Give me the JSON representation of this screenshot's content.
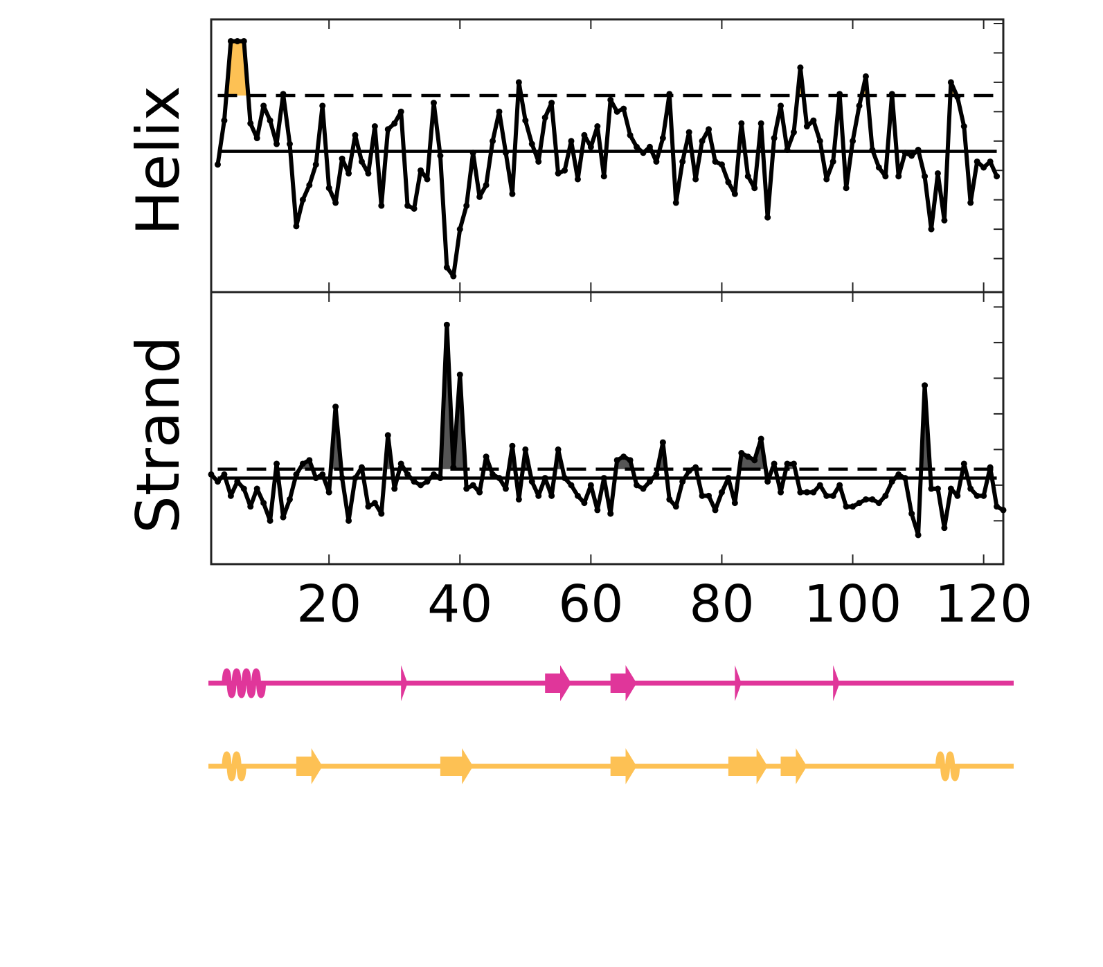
{
  "chart_data": {
    "type": "line",
    "x_ticks": [
      20,
      40,
      60,
      80,
      100,
      120
    ],
    "xlim": [
      2,
      123
    ],
    "colors": {
      "helix_fill": "#fdc154",
      "strand_fill": "#555555",
      "line": "#000000",
      "track_magenta": "#e0369a",
      "track_orange": "#fdc154"
    },
    "panels": [
      {
        "name": "Helix",
        "ylabel": "Helix",
        "ylim": [
          0,
          9
        ],
        "y_ticks": [
          1,
          2,
          3,
          4,
          5,
          6,
          7,
          8,
          9
        ],
        "mean": 4.65,
        "threshold": 6.55,
        "fill_color": "#fdc154",
        "x": [
          3,
          4,
          5,
          6,
          7,
          8,
          9,
          10,
          11,
          12,
          13,
          14,
          15,
          16,
          17,
          18,
          19,
          20,
          21,
          22,
          23,
          24,
          25,
          26,
          27,
          28,
          29,
          30,
          31,
          32,
          33,
          34,
          35,
          36,
          37,
          38,
          39,
          40,
          41,
          42,
          43,
          44,
          45,
          46,
          47,
          48,
          49,
          50,
          51,
          52,
          53,
          54,
          55,
          56,
          57,
          58,
          59,
          60,
          61,
          62,
          63,
          64,
          65,
          66,
          67,
          68,
          69,
          70,
          71,
          72,
          73,
          74,
          75,
          76,
          77,
          78,
          79,
          80,
          81,
          82,
          83,
          84,
          85,
          86,
          87,
          88,
          89,
          90,
          91,
          92,
          93,
          94,
          95,
          96,
          97,
          98,
          99,
          100,
          101,
          102,
          103,
          104,
          105,
          106,
          107,
          108,
          109,
          110,
          111,
          112,
          113,
          114,
          115,
          116,
          117,
          118,
          119,
          120,
          121,
          122
        ],
        "values": [
          4.2,
          5.7,
          8.4,
          8.4,
          8.4,
          5.6,
          5.1,
          6.2,
          5.7,
          4.9,
          6.6,
          4.9,
          2.1,
          3.0,
          3.5,
          4.2,
          6.2,
          3.4,
          2.9,
          4.4,
          3.9,
          5.2,
          4.3,
          3.9,
          5.5,
          2.8,
          5.4,
          5.6,
          6.0,
          2.8,
          2.7,
          4.0,
          3.7,
          6.3,
          4.5,
          0.7,
          0.4,
          2.0,
          2.8,
          4.6,
          3.1,
          3.5,
          5.0,
          6.0,
          4.6,
          3.2,
          7.0,
          5.7,
          4.9,
          4.3,
          5.8,
          6.3,
          3.9,
          4.0,
          5.0,
          3.7,
          5.2,
          4.8,
          5.5,
          3.8,
          6.4,
          6.0,
          6.1,
          5.2,
          4.8,
          4.6,
          4.8,
          4.3,
          5.1,
          6.6,
          2.9,
          4.3,
          5.3,
          3.7,
          5.0,
          5.4,
          4.3,
          4.2,
          3.6,
          3.2,
          5.6,
          3.8,
          3.4,
          5.6,
          2.4,
          5.1,
          6.2,
          4.7,
          5.3,
          7.5,
          5.5,
          5.7,
          5.0,
          3.7,
          4.3,
          6.6,
          3.4,
          5.0,
          6.2,
          7.2,
          4.7,
          4.1,
          3.8,
          6.6,
          3.8,
          4.6,
          4.5,
          4.7,
          3.8,
          2.0,
          3.9,
          2.3,
          7.0,
          6.5,
          5.5,
          2.9,
          4.3,
          4.1,
          4.3,
          3.8
        ]
      },
      {
        "name": "Strand",
        "ylabel": "Strand",
        "ylim": [
          -2.1,
          5.3
        ],
        "y_ticks": [
          -1,
          0,
          1,
          2,
          3,
          4,
          5
        ],
        "mean": 0.2,
        "threshold": 0.45,
        "fill_color": "#555555",
        "x": [
          2,
          3,
          4,
          5,
          6,
          7,
          8,
          9,
          10,
          11,
          12,
          13,
          14,
          15,
          16,
          17,
          18,
          19,
          20,
          21,
          22,
          23,
          24,
          25,
          26,
          27,
          28,
          29,
          30,
          31,
          32,
          33,
          34,
          35,
          36,
          37,
          38,
          39,
          40,
          41,
          42,
          43,
          44,
          45,
          46,
          47,
          48,
          49,
          50,
          51,
          52,
          53,
          54,
          55,
          56,
          57,
          58,
          59,
          60,
          61,
          62,
          63,
          64,
          65,
          66,
          67,
          68,
          69,
          70,
          71,
          72,
          73,
          74,
          75,
          76,
          77,
          78,
          79,
          80,
          81,
          82,
          83,
          84,
          85,
          86,
          87,
          88,
          89,
          90,
          91,
          92,
          93,
          94,
          95,
          96,
          97,
          98,
          99,
          100,
          101,
          102,
          103,
          104,
          105,
          106,
          107,
          108,
          109,
          110,
          111,
          112,
          113,
          114,
          115,
          116,
          117,
          118,
          119,
          120,
          121,
          122,
          123
        ],
        "values": [
          0.3,
          0.1,
          0.3,
          -0.3,
          0.1,
          -0.1,
          -0.6,
          -0.1,
          -0.5,
          -1.0,
          0.6,
          -0.9,
          -0.4,
          0.3,
          0.6,
          0.7,
          0.2,
          0.3,
          -0.2,
          2.2,
          0.2,
          -1.0,
          0.2,
          0.5,
          -0.6,
          -0.5,
          -0.8,
          1.4,
          -0.1,
          0.6,
          0.3,
          0.1,
          0.0,
          0.1,
          0.3,
          0.2,
          4.5,
          0.5,
          3.1,
          -0.1,
          0.0,
          -0.2,
          0.8,
          0.3,
          0.2,
          -0.1,
          1.1,
          -0.4,
          1.0,
          0.1,
          -0.3,
          0.2,
          -0.3,
          1.0,
          0.2,
          0.0,
          -0.3,
          -0.5,
          0.0,
          -0.7,
          0.2,
          -0.8,
          0.7,
          0.8,
          0.7,
          0.0,
          -0.1,
          0.1,
          0.3,
          1.2,
          -0.4,
          -0.6,
          0.1,
          0.4,
          0.5,
          -0.3,
          -0.3,
          -0.7,
          -0.2,
          0.2,
          -0.5,
          0.9,
          0.8,
          0.7,
          1.3,
          0.1,
          0.6,
          -0.2,
          0.6,
          0.6,
          -0.2,
          -0.2,
          -0.2,
          0.0,
          -0.3,
          -0.3,
          0.0,
          -0.6,
          -0.6,
          -0.5,
          -0.4,
          -0.4,
          -0.5,
          -0.3,
          0.1,
          0.3,
          0.2,
          -0.8,
          -1.4,
          2.8,
          -0.1,
          -0.1,
          -1.2,
          -0.1,
          -0.3,
          0.6,
          -0.1,
          -0.3,
          -0.3,
          0.5,
          -0.6,
          -0.7
        ]
      }
    ],
    "tracks": [
      {
        "name": "magenta",
        "color": "#e0369a",
        "elements": [
          {
            "type": "helix",
            "start": 4,
            "end": 10
          },
          {
            "type": "strand",
            "start": 31,
            "end": 32
          },
          {
            "type": "strand",
            "start": 53,
            "end": 57
          },
          {
            "type": "strand",
            "start": 63,
            "end": 67
          },
          {
            "type": "strand",
            "start": 82,
            "end": 83
          },
          {
            "type": "strand",
            "start": 97,
            "end": 98
          }
        ]
      },
      {
        "name": "orange",
        "color": "#fdc154",
        "elements": [
          {
            "type": "helix",
            "start": 4,
            "end": 7
          },
          {
            "type": "strand",
            "start": 15,
            "end": 19
          },
          {
            "type": "strand",
            "start": 37,
            "end": 42
          },
          {
            "type": "strand",
            "start": 63,
            "end": 67
          },
          {
            "type": "strand",
            "start": 81,
            "end": 87
          },
          {
            "type": "strand",
            "start": 89,
            "end": 93
          },
          {
            "type": "helix",
            "start": 113,
            "end": 116
          }
        ]
      }
    ]
  }
}
